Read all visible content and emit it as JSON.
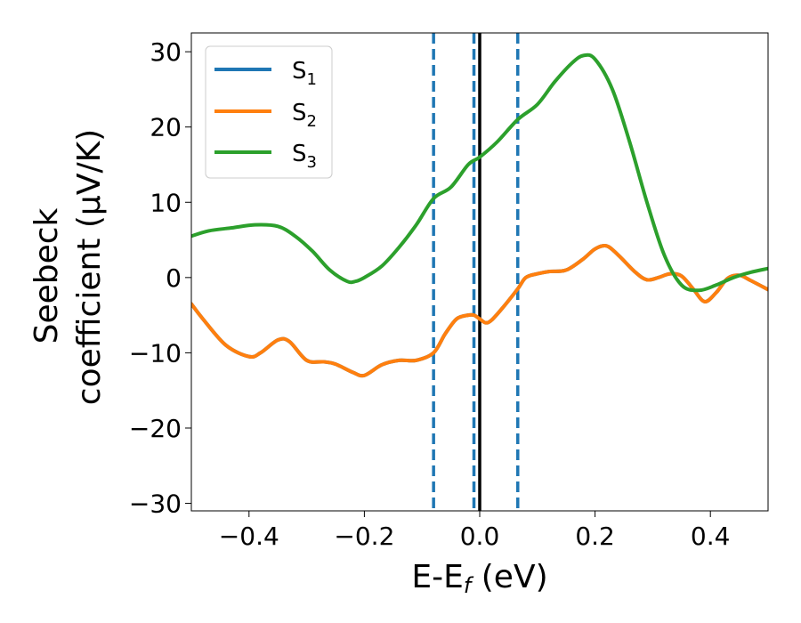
{
  "chart_data": {
    "type": "line",
    "title": "",
    "xlabel": {
      "main": "E-E",
      "sub": "f",
      "unit": " (eV)"
    },
    "ylabel": {
      "line1": "Seebeck",
      "line2": "coefficient  (μV/K)"
    },
    "xlim": [
      -0.5,
      0.5
    ],
    "ylim": [
      -31,
      32.5
    ],
    "xticks": [
      -0.4,
      -0.2,
      0.0,
      0.2,
      0.4
    ],
    "xtick_labels": [
      "−0.4",
      "−0.2",
      "0.0",
      "0.2",
      "0.4"
    ],
    "yticks": [
      -30,
      -20,
      -10,
      0,
      10,
      20,
      30
    ],
    "ytick_labels": [
      "−30",
      "−20",
      "−10",
      "0",
      "10",
      "20",
      "30"
    ],
    "legend": {
      "position": "top-left",
      "entries": [
        {
          "name": "S",
          "sub": "1",
          "color": "#1f77b4"
        },
        {
          "name": "S",
          "sub": "2",
          "color": "#ff7f0e"
        },
        {
          "name": "S",
          "sub": "3",
          "color": "#2ca02c"
        }
      ]
    },
    "vlines": [
      {
        "x": -0.08,
        "style": "dashed",
        "color": "#1f77b4"
      },
      {
        "x": -0.01,
        "style": "dashed",
        "color": "#1f77b4"
      },
      {
        "x": 0.0,
        "style": "solid",
        "color": "#000000"
      },
      {
        "x": 0.066,
        "style": "dashed",
        "color": "#1f77b4"
      }
    ],
    "series": [
      {
        "name": "S1",
        "color": "#1f77b4",
        "x": [
          -0.5,
          -0.48,
          -0.44,
          -0.4,
          -0.38,
          -0.35,
          -0.33,
          -0.3,
          -0.27,
          -0.25,
          -0.22,
          -0.2,
          -0.17,
          -0.14,
          -0.11,
          -0.08,
          -0.06,
          -0.04,
          -0.02,
          -0.01,
          0.0,
          0.01,
          0.02,
          0.04,
          0.066,
          0.08,
          0.1,
          0.12,
          0.15,
          0.18,
          0.2,
          0.22,
          0.24,
          0.27,
          0.29,
          0.31,
          0.33,
          0.35,
          0.37,
          0.39,
          0.41,
          0.43,
          0.45,
          0.47,
          0.5
        ],
        "values": [
          -3.5,
          -5.5,
          -9,
          -10.5,
          -10,
          -8.3,
          -8.5,
          -11,
          -11.2,
          -11.5,
          -12.6,
          -13,
          -11.6,
          -11,
          -11,
          -10,
          -7.5,
          -5.5,
          -5,
          -5,
          -5.5,
          -6,
          -5.7,
          -4,
          -1.5,
          0,
          0.5,
          0.8,
          1,
          2.5,
          3.8,
          4.2,
          3,
          0.7,
          -0.3,
          0,
          0.5,
          0.2,
          -1.5,
          -3.2,
          -2,
          -0.1,
          0.3,
          -0.4,
          -1.6
        ]
      },
      {
        "name": "S2",
        "color": "#ff7f0e",
        "x": [
          -0.5,
          -0.48,
          -0.44,
          -0.4,
          -0.38,
          -0.35,
          -0.33,
          -0.3,
          -0.27,
          -0.25,
          -0.22,
          -0.2,
          -0.17,
          -0.14,
          -0.11,
          -0.08,
          -0.06,
          -0.04,
          -0.02,
          -0.01,
          0.0,
          0.01,
          0.02,
          0.04,
          0.066,
          0.08,
          0.1,
          0.12,
          0.15,
          0.18,
          0.2,
          0.22,
          0.24,
          0.27,
          0.29,
          0.31,
          0.33,
          0.35,
          0.37,
          0.39,
          0.41,
          0.43,
          0.45,
          0.47,
          0.5
        ],
        "values": [
          -3.5,
          -5.5,
          -9,
          -10.5,
          -10,
          -8.3,
          -8.5,
          -11,
          -11.2,
          -11.5,
          -12.6,
          -13,
          -11.6,
          -11,
          -11,
          -10,
          -7.5,
          -5.5,
          -5,
          -5,
          -5.5,
          -6,
          -5.7,
          -4,
          -1.5,
          0,
          0.5,
          0.8,
          1,
          2.5,
          3.8,
          4.2,
          3,
          0.7,
          -0.3,
          0,
          0.5,
          0.2,
          -1.5,
          -3.2,
          -2,
          -0.1,
          0.3,
          -0.4,
          -1.6
        ]
      },
      {
        "name": "S3",
        "color": "#2ca02c",
        "x": [
          -0.5,
          -0.47,
          -0.43,
          -0.39,
          -0.35,
          -0.32,
          -0.29,
          -0.26,
          -0.23,
          -0.215,
          -0.2,
          -0.17,
          -0.14,
          -0.11,
          -0.08,
          -0.05,
          -0.02,
          0.0,
          0.03,
          0.066,
          0.1,
          0.13,
          0.16,
          0.18,
          0.2,
          0.23,
          0.26,
          0.29,
          0.32,
          0.35,
          0.38,
          0.41,
          0.44,
          0.47,
          0.5
        ],
        "values": [
          5.5,
          6.2,
          6.6,
          7,
          6.8,
          5.5,
          3.5,
          1,
          -0.5,
          -0.5,
          0,
          1.5,
          4,
          7,
          10.5,
          12,
          15,
          16,
          18,
          21,
          23,
          26,
          28.5,
          29.5,
          29,
          25,
          18,
          10,
          3,
          -1,
          -1.7,
          -1,
          0,
          0.7,
          1.2
        ]
      }
    ]
  }
}
